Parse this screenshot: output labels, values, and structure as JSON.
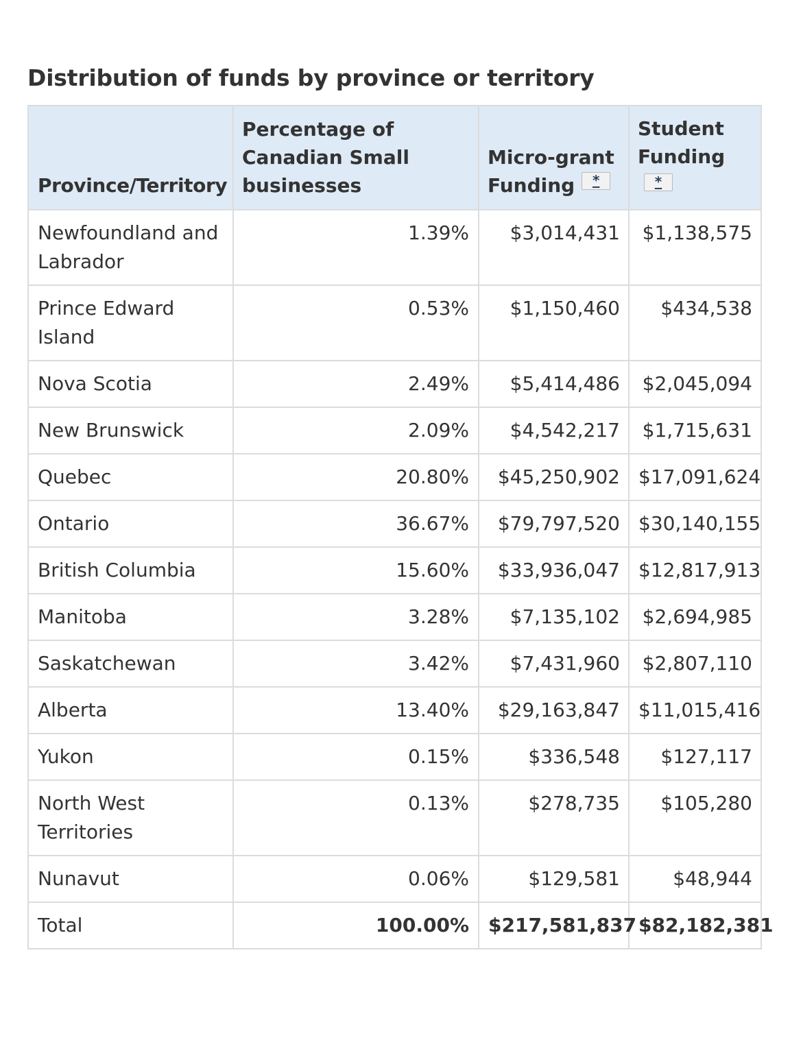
{
  "title": "Distribution of funds by province or territory",
  "table": {
    "headers": {
      "province": "Province/Territory",
      "percentage_line1": "Percentage of",
      "percentage_line2": "Canadian Small",
      "percentage_line3": "businesses",
      "micro_line1": "Micro-grant",
      "micro_line2": "Funding",
      "student_line1": "Student",
      "student_line2": "Funding",
      "footnote_marker": "*"
    },
    "rows": [
      {
        "province": "Newfoundland and Labrador",
        "percentage": "1.39%",
        "micro_grant": "$3,014,431",
        "student": "$1,138,575"
      },
      {
        "province": "Prince Edward Island",
        "percentage": "0.53%",
        "micro_grant": "$1,150,460",
        "student": "$434,538"
      },
      {
        "province": "Nova Scotia",
        "percentage": "2.49%",
        "micro_grant": "$5,414,486",
        "student": "$2,045,094"
      },
      {
        "province": "New Brunswick",
        "percentage": "2.09%",
        "micro_grant": "$4,542,217",
        "student": "$1,715,631"
      },
      {
        "province": "Quebec",
        "percentage": "20.80%",
        "micro_grant": "$45,250,902",
        "student": "$17,091,624"
      },
      {
        "province": "Ontario",
        "percentage": "36.67%",
        "micro_grant": "$79,797,520",
        "student": "$30,140,155"
      },
      {
        "province": "British Columbia",
        "percentage": "15.60%",
        "micro_grant": "$33,936,047",
        "student": "$12,817,913"
      },
      {
        "province": "Manitoba",
        "percentage": "3.28%",
        "micro_grant": "$7,135,102",
        "student": "$2,694,985"
      },
      {
        "province": "Saskatchewan",
        "percentage": "3.42%",
        "micro_grant": "$7,431,960",
        "student": "$2,807,110"
      },
      {
        "province": "Alberta",
        "percentage": "13.40%",
        "micro_grant": "$29,163,847",
        "student": "$11,015,416"
      },
      {
        "province": "Yukon",
        "percentage": "0.15%",
        "micro_grant": "$336,548",
        "student": "$127,117"
      },
      {
        "province": "North West Territories",
        "percentage": "0.13%",
        "micro_grant": "$278,735",
        "student": "$105,280"
      },
      {
        "province": "Nunavut",
        "percentage": "0.06%",
        "micro_grant": "$129,581",
        "student": "$48,944"
      },
      {
        "province": "Total",
        "percentage": "100.00%",
        "micro_grant": "$217,581,837",
        "student": "$82,182,381"
      }
    ]
  },
  "colors": {
    "header_background": "#deeaf6",
    "border": "#dcdcdc",
    "text": "#333333",
    "footnote_link": "#284162"
  }
}
